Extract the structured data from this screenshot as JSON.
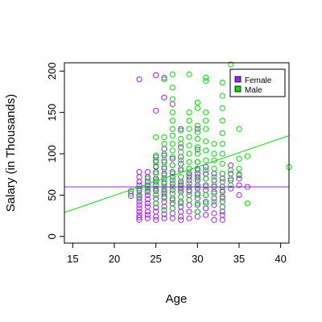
{
  "chart_data": {
    "type": "scatter",
    "title": "",
    "xlabel": "Age",
    "ylabel": "Salary (in Thousands)",
    "xlim": [
      14,
      41
    ],
    "ylim": [
      -8,
      210
    ],
    "x_ticks": [
      15,
      20,
      25,
      30,
      35,
      40
    ],
    "y_ticks": [
      0,
      50,
      100,
      150,
      200
    ],
    "grid": false,
    "legend_position": "top-right",
    "series": [
      {
        "name": "Female",
        "color": "#a020f0",
        "marker": "open-circle",
        "points": [
          [
            22,
            49
          ],
          [
            22,
            55
          ],
          [
            23,
            20
          ],
          [
            23,
            23
          ],
          [
            23,
            26
          ],
          [
            23,
            30
          ],
          [
            23,
            34
          ],
          [
            23,
            38
          ],
          [
            23,
            42
          ],
          [
            23,
            46
          ],
          [
            23,
            50
          ],
          [
            23,
            55
          ],
          [
            23,
            58
          ],
          [
            23,
            62
          ],
          [
            23,
            66
          ],
          [
            23,
            72
          ],
          [
            23,
            78
          ],
          [
            23,
            190
          ],
          [
            24,
            22
          ],
          [
            24,
            26
          ],
          [
            24,
            30
          ],
          [
            24,
            36
          ],
          [
            24,
            40
          ],
          [
            24,
            45
          ],
          [
            24,
            50
          ],
          [
            24,
            54
          ],
          [
            24,
            58
          ],
          [
            24,
            62
          ],
          [
            24,
            66
          ],
          [
            24,
            72
          ],
          [
            24,
            78
          ],
          [
            25,
            20
          ],
          [
            25,
            24
          ],
          [
            25,
            30
          ],
          [
            25,
            35
          ],
          [
            25,
            40
          ],
          [
            25,
            46
          ],
          [
            25,
            50
          ],
          [
            25,
            55
          ],
          [
            25,
            58
          ],
          [
            25,
            62
          ],
          [
            25,
            66
          ],
          [
            25,
            70
          ],
          [
            25,
            78
          ],
          [
            25,
            84
          ],
          [
            25,
            90
          ],
          [
            25,
            96
          ],
          [
            25,
            152
          ],
          [
            25,
            195
          ],
          [
            26,
            22
          ],
          [
            26,
            27
          ],
          [
            26,
            32
          ],
          [
            26,
            36
          ],
          [
            26,
            42
          ],
          [
            26,
            48
          ],
          [
            26,
            52
          ],
          [
            26,
            56
          ],
          [
            26,
            60
          ],
          [
            26,
            64
          ],
          [
            26,
            70
          ],
          [
            26,
            76
          ],
          [
            26,
            82
          ],
          [
            26,
            90
          ],
          [
            26,
            98
          ],
          [
            26,
            106
          ],
          [
            26,
            168
          ],
          [
            26,
            192
          ],
          [
            27,
            22
          ],
          [
            27,
            28
          ],
          [
            27,
            34
          ],
          [
            27,
            40
          ],
          [
            27,
            46
          ],
          [
            27,
            52
          ],
          [
            27,
            56
          ],
          [
            27,
            60
          ],
          [
            27,
            64
          ],
          [
            27,
            68
          ],
          [
            27,
            72
          ],
          [
            27,
            78
          ],
          [
            27,
            86
          ],
          [
            27,
            94
          ],
          [
            27,
            160
          ],
          [
            28,
            20
          ],
          [
            28,
            24
          ],
          [
            28,
            30
          ],
          [
            28,
            36
          ],
          [
            28,
            42
          ],
          [
            28,
            48
          ],
          [
            28,
            54
          ],
          [
            28,
            58
          ],
          [
            28,
            62
          ],
          [
            28,
            66
          ],
          [
            28,
            72
          ],
          [
            28,
            80
          ],
          [
            28,
            88
          ],
          [
            28,
            96
          ],
          [
            28,
            108
          ],
          [
            28,
            130
          ],
          [
            29,
            22
          ],
          [
            29,
            30
          ],
          [
            29,
            38
          ],
          [
            29,
            44
          ],
          [
            29,
            50
          ],
          [
            29,
            56
          ],
          [
            29,
            60
          ],
          [
            29,
            64
          ],
          [
            29,
            68
          ],
          [
            29,
            72
          ],
          [
            29,
            76
          ],
          [
            29,
            82
          ],
          [
            30,
            24
          ],
          [
            30,
            30
          ],
          [
            30,
            38
          ],
          [
            30,
            46
          ],
          [
            30,
            52
          ],
          [
            30,
            58
          ],
          [
            30,
            62
          ],
          [
            30,
            68
          ],
          [
            30,
            72
          ],
          [
            30,
            76
          ],
          [
            30,
            82
          ],
          [
            30,
            90
          ],
          [
            30,
            105
          ],
          [
            30,
            130
          ],
          [
            31,
            26
          ],
          [
            31,
            34
          ],
          [
            31,
            42
          ],
          [
            31,
            50
          ],
          [
            31,
            56
          ],
          [
            31,
            62
          ],
          [
            31,
            70
          ],
          [
            31,
            76
          ],
          [
            31,
            84
          ],
          [
            32,
            20
          ],
          [
            32,
            28
          ],
          [
            32,
            38
          ],
          [
            32,
            46
          ],
          [
            32,
            54
          ],
          [
            32,
            60
          ],
          [
            32,
            68
          ],
          [
            32,
            76
          ],
          [
            33,
            20
          ],
          [
            33,
            26
          ],
          [
            33,
            30
          ],
          [
            33,
            36
          ],
          [
            33,
            42
          ],
          [
            33,
            48
          ],
          [
            33,
            54
          ],
          [
            33,
            60
          ],
          [
            33,
            66
          ],
          [
            33,
            70
          ],
          [
            33,
            76
          ],
          [
            34,
            58
          ],
          [
            34,
            68
          ],
          [
            34,
            76
          ],
          [
            34,
            86
          ],
          [
            35,
            50
          ],
          [
            35,
            62
          ],
          [
            35,
            70
          ],
          [
            35,
            74
          ],
          [
            36,
            60
          ]
        ]
      },
      {
        "name": "Male",
        "color": "#00e000",
        "marker": "open-circle",
        "points": [
          [
            22,
            52
          ],
          [
            23,
            48
          ],
          [
            23,
            56
          ],
          [
            24,
            55
          ],
          [
            24,
            60
          ],
          [
            24,
            70
          ],
          [
            25,
            40
          ],
          [
            25,
            50
          ],
          [
            25,
            56
          ],
          [
            25,
            62
          ],
          [
            25,
            68
          ],
          [
            25,
            76
          ],
          [
            25,
            85
          ],
          [
            25,
            92
          ],
          [
            25,
            98
          ],
          [
            25,
            120
          ],
          [
            26,
            32
          ],
          [
            26,
            46
          ],
          [
            26,
            54
          ],
          [
            26,
            60
          ],
          [
            26,
            66
          ],
          [
            26,
            74
          ],
          [
            26,
            84
          ],
          [
            26,
            92
          ],
          [
            26,
            100
          ],
          [
            26,
            112
          ],
          [
            26,
            120
          ],
          [
            26,
            190
          ],
          [
            27,
            34
          ],
          [
            27,
            44
          ],
          [
            27,
            52
          ],
          [
            27,
            60
          ],
          [
            27,
            68
          ],
          [
            27,
            76
          ],
          [
            27,
            86
          ],
          [
            27,
            96
          ],
          [
            27,
            104
          ],
          [
            27,
            112
          ],
          [
            27,
            122
          ],
          [
            27,
            130
          ],
          [
            27,
            140
          ],
          [
            27,
            150
          ],
          [
            27,
            166
          ],
          [
            27,
            180
          ],
          [
            27,
            196
          ],
          [
            28,
            40
          ],
          [
            28,
            48
          ],
          [
            28,
            56
          ],
          [
            28,
            64
          ],
          [
            28,
            72
          ],
          [
            28,
            82
          ],
          [
            28,
            92
          ],
          [
            28,
            102
          ],
          [
            28,
            112
          ],
          [
            28,
            118
          ],
          [
            28,
            128
          ],
          [
            29,
            44
          ],
          [
            29,
            54
          ],
          [
            29,
            64
          ],
          [
            29,
            74
          ],
          [
            29,
            82
          ],
          [
            29,
            90
          ],
          [
            29,
            100
          ],
          [
            29,
            110
          ],
          [
            29,
            120
          ],
          [
            29,
            130
          ],
          [
            29,
            140
          ],
          [
            29,
            150
          ],
          [
            29,
            196
          ],
          [
            30,
            30
          ],
          [
            30,
            40
          ],
          [
            30,
            50
          ],
          [
            30,
            60
          ],
          [
            30,
            70
          ],
          [
            30,
            80
          ],
          [
            30,
            90
          ],
          [
            30,
            100
          ],
          [
            30,
            108
          ],
          [
            30,
            118
          ],
          [
            30,
            126
          ],
          [
            30,
            134
          ],
          [
            30,
            155
          ],
          [
            30,
            162
          ],
          [
            31,
            40
          ],
          [
            31,
            50
          ],
          [
            31,
            60
          ],
          [
            31,
            70
          ],
          [
            31,
            80
          ],
          [
            31,
            92
          ],
          [
            31,
            104
          ],
          [
            31,
            115
          ],
          [
            31,
            130
          ],
          [
            31,
            140
          ],
          [
            31,
            150
          ],
          [
            31,
            188
          ],
          [
            31,
            192
          ],
          [
            32,
            42
          ],
          [
            32,
            52
          ],
          [
            32,
            62
          ],
          [
            32,
            72
          ],
          [
            32,
            82
          ],
          [
            32,
            92
          ],
          [
            32,
            100
          ],
          [
            32,
            112
          ],
          [
            33,
            36
          ],
          [
            33,
            46
          ],
          [
            33,
            56
          ],
          [
            33,
            66
          ],
          [
            33,
            76
          ],
          [
            33,
            88
          ],
          [
            33,
            100
          ],
          [
            33,
            112
          ],
          [
            33,
            125
          ],
          [
            33,
            140
          ],
          [
            33,
            155
          ],
          [
            33,
            170
          ],
          [
            33,
            186
          ],
          [
            34,
            62
          ],
          [
            34,
            70
          ],
          [
            34,
            80
          ],
          [
            34,
            208
          ],
          [
            35,
            75
          ],
          [
            35,
            82
          ],
          [
            35,
            94
          ],
          [
            35,
            130
          ],
          [
            36,
            40
          ],
          [
            36,
            97
          ],
          [
            41,
            84
          ]
        ]
      }
    ],
    "lines": [
      {
        "name": "Female",
        "color": "#a020f0",
        "x1": 14,
        "y1": 60,
        "x2": 41,
        "y2": 60
      },
      {
        "name": "Male",
        "color": "#00e000",
        "x1": 14,
        "y1": 29,
        "x2": 41,
        "y2": 122
      }
    ]
  }
}
